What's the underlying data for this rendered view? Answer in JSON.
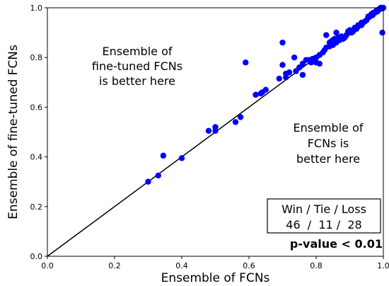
{
  "chart_data": {
    "type": "scatter",
    "xlabel": "Ensemble of FCNs",
    "ylabel": "Ensemble of fine-tuned FCNs",
    "xlim": [
      0.0,
      1.0
    ],
    "ylim": [
      0.0,
      1.0
    ],
    "xticks": [
      "0.0",
      "0.2",
      "0.4",
      "0.6",
      "0.8",
      "1.0"
    ],
    "yticks": [
      "0.0",
      "0.2",
      "0.4",
      "0.6",
      "0.8",
      "1.0"
    ],
    "grid": false,
    "diagonal_line": true,
    "marker_color": "#0000ff",
    "line_color": "#000000",
    "annotations": {
      "upper_left": [
        "Ensemble of",
        "fine-tuned FCNs",
        "is better here"
      ],
      "lower_right": [
        "Ensemble of",
        "FCNs is",
        "better here"
      ]
    },
    "stats_box": {
      "header": "Win / Tie / Loss",
      "values": "46  /  11 /  28",
      "pvalue": "p-value < 0.01"
    },
    "points": [
      [
        0.3,
        0.3
      ],
      [
        0.33,
        0.325
      ],
      [
        0.345,
        0.405
      ],
      [
        0.4,
        0.395
      ],
      [
        0.48,
        0.505
      ],
      [
        0.5,
        0.505
      ],
      [
        0.5,
        0.52
      ],
      [
        0.56,
        0.54
      ],
      [
        0.575,
        0.56
      ],
      [
        0.59,
        0.78
      ],
      [
        0.62,
        0.65
      ],
      [
        0.635,
        0.655
      ],
      [
        0.64,
        0.66
      ],
      [
        0.65,
        0.67
      ],
      [
        0.69,
        0.715
      ],
      [
        0.7,
        0.77
      ],
      [
        0.71,
        0.735
      ],
      [
        0.7,
        0.86
      ],
      [
        0.71,
        0.72
      ],
      [
        0.72,
        0.74
      ],
      [
        0.735,
        0.8
      ],
      [
        0.74,
        0.745
      ],
      [
        0.75,
        0.76
      ],
      [
        0.76,
        0.775
      ],
      [
        0.76,
        0.73
      ],
      [
        0.77,
        0.79
      ],
      [
        0.78,
        0.79
      ],
      [
        0.785,
        0.78
      ],
      [
        0.79,
        0.795
      ],
      [
        0.8,
        0.78
      ],
      [
        0.8,
        0.8
      ],
      [
        0.81,
        0.81
      ],
      [
        0.81,
        0.775
      ],
      [
        0.82,
        0.82
      ],
      [
        0.825,
        0.83
      ],
      [
        0.83,
        0.84
      ],
      [
        0.83,
        0.89
      ],
      [
        0.84,
        0.845
      ],
      [
        0.84,
        0.86
      ],
      [
        0.845,
        0.865
      ],
      [
        0.85,
        0.87
      ],
      [
        0.85,
        0.85
      ],
      [
        0.855,
        0.875
      ],
      [
        0.86,
        0.86
      ],
      [
        0.86,
        0.9
      ],
      [
        0.865,
        0.88
      ],
      [
        0.87,
        0.87
      ],
      [
        0.875,
        0.885
      ],
      [
        0.88,
        0.875
      ],
      [
        0.885,
        0.88
      ],
      [
        0.89,
        0.89
      ],
      [
        0.9,
        0.91
      ],
      [
        0.905,
        0.9
      ],
      [
        0.91,
        0.905
      ],
      [
        0.915,
        0.92
      ],
      [
        0.92,
        0.915
      ],
      [
        0.925,
        0.925
      ],
      [
        0.93,
        0.93
      ],
      [
        0.935,
        0.93
      ],
      [
        0.94,
        0.94
      ],
      [
        0.945,
        0.945
      ],
      [
        0.95,
        0.95
      ],
      [
        0.955,
        0.96
      ],
      [
        0.96,
        0.965
      ],
      [
        0.962,
        0.97
      ],
      [
        0.965,
        0.975
      ],
      [
        0.968,
        0.97
      ],
      [
        0.97,
        0.98
      ],
      [
        0.975,
        0.98
      ],
      [
        0.978,
        0.985
      ],
      [
        0.98,
        0.99
      ],
      [
        0.982,
        0.985
      ],
      [
        0.985,
        0.99
      ],
      [
        0.988,
        0.995
      ],
      [
        0.99,
        0.995
      ],
      [
        0.992,
        1.0
      ],
      [
        0.995,
        1.0
      ],
      [
        0.998,
        0.998
      ],
      [
        1.0,
        1.0
      ],
      [
        0.997,
        0.9
      ],
      [
        0.955,
        0.965
      ],
      [
        0.935,
        0.94
      ],
      [
        0.925,
        0.93
      ],
      [
        0.895,
        0.905
      ],
      [
        0.865,
        0.87
      ]
    ]
  }
}
